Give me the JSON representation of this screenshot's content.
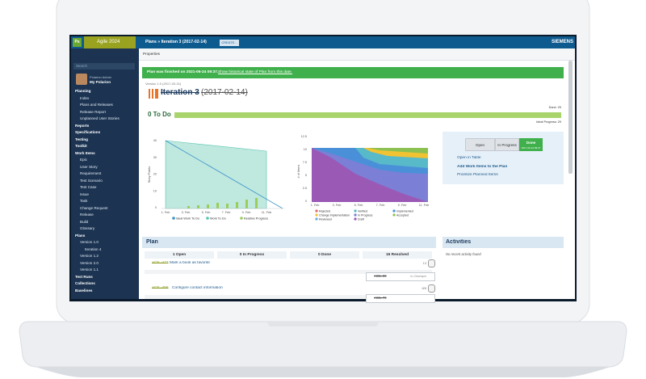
{
  "topbar": {
    "app": "Ps",
    "project": "Agile 2024",
    "breadcrumb": "Plans » Iteration 3 (2017-02-14)",
    "create": "CREATE...",
    "brand": "SIEMENS"
  },
  "sidebar": {
    "search": "Search",
    "user": {
      "name": "Polarion Admin",
      "page": "My Polarion"
    },
    "nav": [
      {
        "label": "Planning",
        "children": [
          {
            "label": "Index"
          },
          {
            "label": "Plans and Releases"
          },
          {
            "label": "Release Report"
          },
          {
            "label": "Unplanned User Stories"
          }
        ]
      },
      {
        "label": "Reports"
      },
      {
        "label": "Specifications"
      },
      {
        "label": "Testing"
      },
      {
        "label": "Toolkit"
      },
      {
        "label": "Work Items",
        "children": [
          {
            "label": "Epic"
          },
          {
            "label": "User Story"
          },
          {
            "label": "Requirement"
          },
          {
            "label": "Test Scenario"
          },
          {
            "label": "Test Case"
          },
          {
            "label": "Issue"
          },
          {
            "label": "Task"
          },
          {
            "label": "Change Request"
          },
          {
            "label": "Release"
          },
          {
            "label": "Build"
          },
          {
            "label": "Glossary"
          }
        ]
      },
      {
        "label": "Plans",
        "children": [
          {
            "label": "Version 1.0",
            "children": [
              {
                "label": "Iteration 4"
              }
            ]
          },
          {
            "label": "Version 1.2"
          },
          {
            "label": "Version 2.0"
          },
          {
            "label": "Version 1.1"
          }
        ]
      },
      {
        "label": "Test Runs"
      },
      {
        "label": "Collections"
      },
      {
        "label": "Baselines"
      }
    ]
  },
  "tabs": {
    "properties": "Properties"
  },
  "banner": {
    "text": "Plan was finished on 2021-06-24 09:37.",
    "link": "Show historical state of Plan from this date."
  },
  "plan": {
    "parent": "Version 1.0 (2017-03-31)",
    "title": "Iteration 3",
    "date": "(2017-02-14)",
    "status": "0 To Do",
    "done_label": "Done: 29",
    "ideal_label": "Ideal Progress: 29"
  },
  "burndown": {
    "y_title": "Story Points",
    "yticks": [
      "40",
      "30",
      "20",
      "10",
      "0"
    ],
    "xticks": [
      "1. Feb",
      "3. Feb",
      "5. Feb",
      "7. Feb",
      "9. Feb",
      "11. Feb"
    ],
    "legend": [
      "Ideal Work To Do",
      "Work To Do",
      "Relative Progress"
    ]
  },
  "status_chart": {
    "y_title": "# of Items",
    "yticks": [
      "12.5",
      "10",
      "7.5",
      "5",
      "2.5",
      "0"
    ],
    "xticks": [
      "1. Feb",
      "3. Feb",
      "5. Feb",
      "7. Feb",
      "9. Feb",
      "11. Feb"
    ],
    "legend": [
      "Rejected",
      "Verified",
      "Implemented",
      "Change Implementation",
      "In Progress",
      "Accepted",
      "Reviewed",
      "Draft"
    ]
  },
  "workflow": {
    "buttons": [
      "Open",
      "In Progress",
      "Done"
    ],
    "done_date": "2017-02-14 09:37",
    "actions": [
      "Open in Table",
      "Add Work Items to the Plan",
      "Prioritize Planned Items"
    ]
  },
  "plan_board": {
    "title": "Plan",
    "columns": [
      "1 Open",
      "0 In Progress",
      "0 Done",
      "16 Resolved"
    ],
    "rows": [
      {
        "id": "AGIL-477",
        "text": "Mark a book as favorite",
        "points": "13"
      },
      {
        "id": "AGIL-456",
        "text": "Configure contact information",
        "points": "8/8"
      }
    ],
    "resolved": [
      {
        "id": "AGIL-80",
        "state": "In • Developer"
      },
      {
        "id": "AGIL-79"
      }
    ]
  },
  "activities": {
    "title": "Activities",
    "empty": "No recent activity found"
  }
}
